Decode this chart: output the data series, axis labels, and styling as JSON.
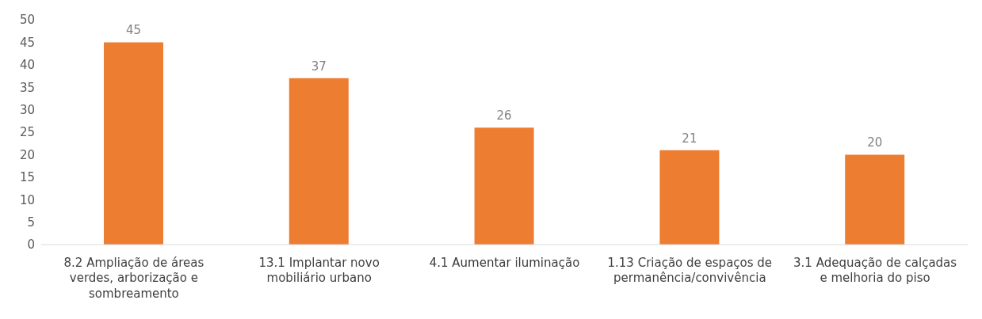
{
  "chart_data": {
    "type": "bar",
    "categories": [
      "8.2 Ampliação de áreas verdes, arborização e sombreamento",
      "13.1 Implantar novo mobiliário urbano",
      "4.1 Aumentar iluminação",
      "1.13 Criação de espaços de permanência/convivência",
      "3.1 Adequação de calçadas e melhoria do piso"
    ],
    "values": [
      45,
      37,
      26,
      21,
      20
    ],
    "color": "#ed7d31",
    "ylim": [
      0,
      50
    ],
    "yticks": [
      0,
      5,
      10,
      15,
      20,
      25,
      30,
      35,
      40,
      45,
      50
    ],
    "grid": false,
    "data_labels": true
  }
}
